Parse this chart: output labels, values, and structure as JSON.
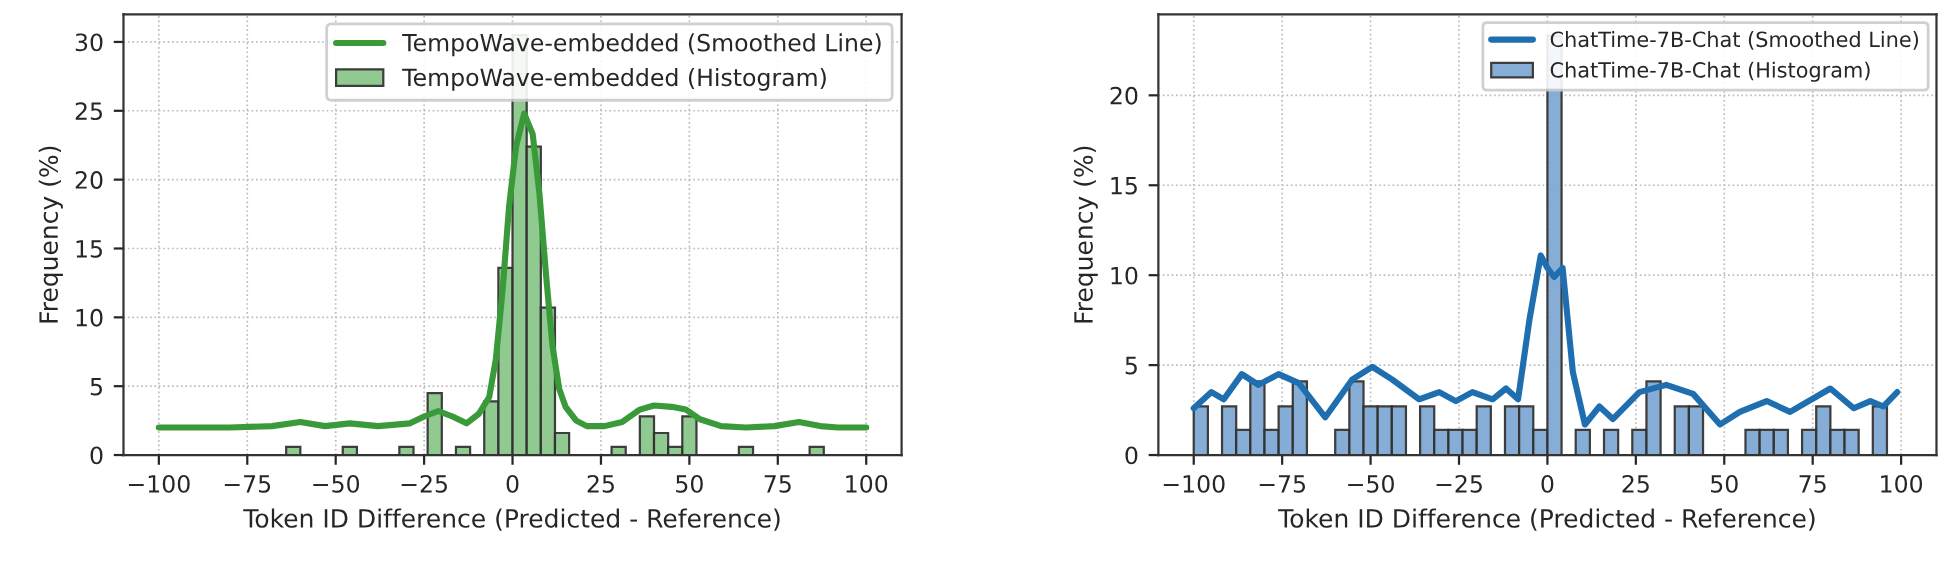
{
  "chart_data": [
    {
      "type": "histogram",
      "xlabel": "Token ID Difference (Predicted - Reference)",
      "ylabel": "Frequency (%)",
      "xlim": [
        -110,
        110
      ],
      "xticks": [
        {
          "value": -100,
          "label": "−100"
        },
        {
          "value": -75,
          "label": "−75"
        },
        {
          "value": -50,
          "label": "−50"
        },
        {
          "value": -25,
          "label": "−25"
        },
        0,
        25,
        50,
        75,
        100
      ],
      "ylim": [
        0,
        32
      ],
      "yticks": [
        0,
        5,
        10,
        15,
        20,
        25,
        30
      ],
      "grid": true,
      "legend": "top right",
      "series": [
        {
          "type": "line",
          "name": "TempoWave-embedded (Smoothed Line)",
          "color": "#3a9a3a",
          "x": [
            -100,
            -80,
            -68,
            -60,
            -53,
            -46,
            -38,
            -29,
            -25,
            -21,
            -17,
            -13,
            -9.5,
            -6.6,
            -4.7,
            -2.8,
            -1,
            1,
            3.3,
            5.7,
            7.6,
            9.5,
            11.3,
            13.2,
            15,
            18,
            21,
            26,
            31,
            36,
            40,
            45,
            49,
            53,
            59,
            66,
            74,
            81,
            87,
            92,
            100
          ],
          "values": [
            2.0,
            2.0,
            2.1,
            2.4,
            2.1,
            2.3,
            2.1,
            2.3,
            2.8,
            3.2,
            2.8,
            2.3,
            3.0,
            4.2,
            7,
            12,
            18,
            22.4,
            24.8,
            23.3,
            19,
            13,
            7.9,
            4.8,
            3.5,
            2.5,
            2.1,
            2.1,
            2.4,
            3.3,
            3.6,
            3.5,
            3.3,
            2.6,
            2.1,
            2.0,
            2.1,
            2.4,
            2.1,
            2.0,
            2.0
          ]
        },
        {
          "name": "TempoWave-embedded (Histogram)",
          "color": "#8cc88c",
          "bins": [
            -64,
            -60,
            -56,
            -52,
            -48,
            -44,
            -40,
            -36,
            -32,
            -28,
            -24,
            -20,
            -16,
            -12,
            -8,
            -4,
            0,
            4,
            8,
            12,
            16,
            20,
            24,
            28,
            32,
            36,
            40,
            44,
            48,
            52,
            56,
            60,
            64,
            68,
            72,
            76,
            80,
            84,
            88
          ],
          "values": [
            0.6,
            0,
            0,
            0,
            0.6,
            0,
            0,
            0,
            0.6,
            0,
            4.5,
            0,
            0.6,
            0,
            3.9,
            13.6,
            30.5,
            22.4,
            10.7,
            1.6,
            0,
            0,
            0,
            0.6,
            0,
            2.8,
            1.6,
            0.6,
            2.8,
            0,
            0,
            0,
            0.6,
            0,
            0,
            0,
            0,
            0.6
          ]
        }
      ]
    },
    {
      "type": "histogram",
      "xlabel": "Token ID Difference (Predicted - Reference)",
      "ylabel": "Frequency (%)",
      "xlim": [
        -110,
        110
      ],
      "xticks": [
        {
          "value": -100,
          "label": "−100"
        },
        {
          "value": -75,
          "label": "−75"
        },
        {
          "value": -50,
          "label": "−50"
        },
        {
          "value": -25,
          "label": "−25"
        },
        0,
        25,
        50,
        75,
        100
      ],
      "ylim": [
        0,
        24.5
      ],
      "yticks": [
        0,
        5,
        10,
        15,
        20
      ],
      "grid": true,
      "legend": "top right",
      "series": [
        {
          "type": "line",
          "name": "ChatTime-7B-Chat (Smoothed Line)",
          "color": "#1f6fb0",
          "x": [
            -100,
            -95,
            -91.5,
            -86.4,
            -81.7,
            -76,
            -70.3,
            -62.8,
            -55.2,
            -49.5,
            -43.9,
            -36.3,
            -30.6,
            -25.9,
            -21.2,
            -15.5,
            -11.7,
            -8.3,
            -5.1,
            -1.9,
            0,
            1.9,
            4.3,
            7.2,
            10.6,
            14.7,
            18.5,
            26,
            33.6,
            41.2,
            48.8,
            54.4,
            62,
            68.6,
            80,
            86.6,
            91.3,
            95,
            98.9
          ],
          "values": [
            2.6,
            3.5,
            3.1,
            4.5,
            3.9,
            4.5,
            4.0,
            2.1,
            4.2,
            4.9,
            4.2,
            3.1,
            3.5,
            3.0,
            3.5,
            3.1,
            3.7,
            3.1,
            7.5,
            11.1,
            10.4,
            9.9,
            10.4,
            4.6,
            1.7,
            2.7,
            2.0,
            3.5,
            3.9,
            3.4,
            1.7,
            2.4,
            3.0,
            2.4,
            3.7,
            2.6,
            3.0,
            2.7,
            3.5
          ]
        },
        {
          "name": "ChatTime-7B-Chat (Histogram)",
          "color": "#7fa9d3",
          "bins": [
            -100,
            -96,
            -92,
            -88,
            -84,
            -80,
            -76,
            -72,
            -68,
            -64,
            -60,
            -56,
            -52,
            -48,
            -44,
            -40,
            -36,
            -32,
            -28,
            -24,
            -20,
            -16,
            -12,
            -8,
            -4,
            0,
            4,
            8,
            12,
            16,
            20,
            24,
            28,
            32,
            36,
            40,
            44,
            48,
            52,
            56,
            60,
            64,
            68,
            72,
            76,
            80,
            84,
            88,
            92,
            96,
            100
          ],
          "values": [
            2.7,
            0,
            2.7,
            1.4,
            4.1,
            1.4,
            2.7,
            4.1,
            0,
            0,
            1.4,
            4.1,
            2.7,
            2.7,
            2.7,
            0,
            2.7,
            1.4,
            1.4,
            1.4,
            2.7,
            0,
            2.7,
            2.7,
            1.4,
            23.3,
            0,
            1.4,
            0,
            1.4,
            0,
            1.4,
            4.1,
            0,
            2.7,
            2.7,
            0,
            0,
            0,
            1.4,
            1.4,
            1.4,
            0,
            1.4,
            2.7,
            1.4,
            1.4,
            0,
            2.7,
            0
          ]
        }
      ]
    }
  ]
}
